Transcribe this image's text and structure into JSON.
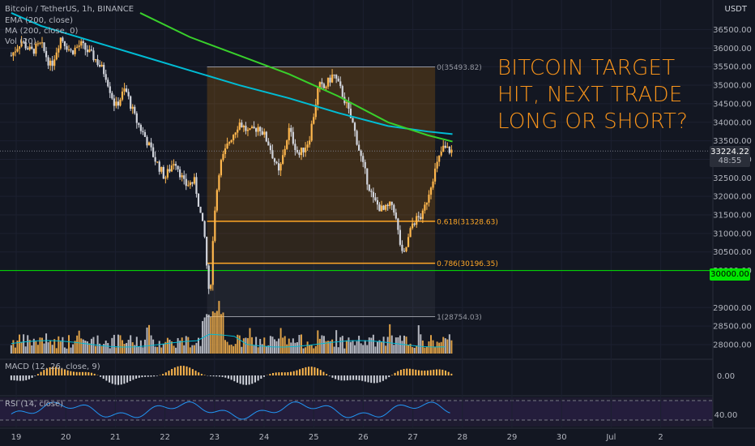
{
  "header": {
    "symbol": "Bitcoin / TetherUS, 1h, BINANCE",
    "ema_label": "EMA (200, close)",
    "ma_label": "MA (200, close, 0)",
    "vol_label": "Vol (20)",
    "currency": "USDT"
  },
  "headline": [
    "BITCOIN TARGET",
    "HIT, NEXT TRADE",
    "LONG OR SHORT?"
  ],
  "current_price": {
    "value": "33224.22",
    "countdown": "48:55"
  },
  "support_level": {
    "value": 30000,
    "label": "30000.00",
    "color": "#00e600"
  },
  "colors": {
    "up": "#ffb74d",
    "down": "#d1d4dc",
    "ema": "#00bcd4",
    "ma": "#39d02b",
    "fib": "#ffa726",
    "rsi": "#2196f3"
  },
  "chart_data": {
    "type": "candlestick",
    "y_axis": {
      "range": [
        27800,
        37000
      ],
      "ticks": [
        "36500.00",
        "36000.00",
        "35500.00",
        "35000.00",
        "34500.00",
        "34000.00",
        "33500.00",
        "33000.00",
        "32500.00",
        "32000.00",
        "31500.00",
        "31000.00",
        "30500.00",
        "30000.00",
        "29000.00",
        "28500.00",
        "28000.00"
      ],
      "tick_values": [
        36500,
        36000,
        35500,
        35000,
        34500,
        34000,
        33500,
        33000,
        32500,
        32000,
        31500,
        31000,
        30500,
        30000,
        29000,
        28500,
        28000
      ]
    },
    "x_axis": {
      "labels": [
        "19",
        "20",
        "21",
        "22",
        "23",
        "24",
        "25",
        "26",
        "27",
        "28",
        "29",
        "30",
        "Jul",
        "2"
      ]
    },
    "price_path": [
      [
        18.9,
        35800
      ],
      [
        19.1,
        36200
      ],
      [
        19.3,
        35900
      ],
      [
        19.5,
        36100
      ],
      [
        19.7,
        35500
      ],
      [
        19.9,
        36300
      ],
      [
        20.1,
        35900
      ],
      [
        20.3,
        36100
      ],
      [
        20.6,
        35700
      ],
      [
        20.8,
        35300
      ],
      [
        21.0,
        34400
      ],
      [
        21.2,
        34900
      ],
      [
        21.4,
        34100
      ],
      [
        21.6,
        33600
      ],
      [
        21.8,
        33000
      ],
      [
        22.0,
        32500
      ],
      [
        22.2,
        33000
      ],
      [
        22.4,
        32300
      ],
      [
        22.6,
        32400
      ],
      [
        22.8,
        30900
      ],
      [
        22.9,
        29100
      ],
      [
        23.0,
        31600
      ],
      [
        23.1,
        32800
      ],
      [
        23.3,
        33500
      ],
      [
        23.5,
        34000
      ],
      [
        23.7,
        33700
      ],
      [
        23.9,
        33900
      ],
      [
        24.1,
        33400
      ],
      [
        24.3,
        32600
      ],
      [
        24.5,
        33800
      ],
      [
        24.7,
        33100
      ],
      [
        24.9,
        33500
      ],
      [
        25.0,
        34200
      ],
      [
        25.1,
        35000
      ],
      [
        25.2,
        34900
      ],
      [
        25.4,
        35300
      ],
      [
        25.6,
        34700
      ],
      [
        25.8,
        33900
      ],
      [
        26.0,
        32800
      ],
      [
        26.2,
        31900
      ],
      [
        26.4,
        31600
      ],
      [
        26.6,
        31800
      ],
      [
        26.8,
        30300
      ],
      [
        26.9,
        30800
      ],
      [
        27.0,
        31300
      ],
      [
        27.2,
        31500
      ],
      [
        27.4,
        32500
      ],
      [
        27.6,
        33300
      ],
      [
        27.8,
        33224
      ]
    ],
    "ema200": [
      [
        18.9,
        36950
      ],
      [
        19.5,
        36600
      ],
      [
        20.5,
        36200
      ],
      [
        21.5,
        35800
      ],
      [
        22.5,
        35400
      ],
      [
        23.5,
        35000
      ],
      [
        24.5,
        34650
      ],
      [
        25.5,
        34250
      ],
      [
        26.5,
        33900
      ],
      [
        27.3,
        33750
      ],
      [
        27.8,
        33680
      ]
    ],
    "ma200": [
      [
        21.5,
        36950
      ],
      [
        22.5,
        36300
      ],
      [
        23.5,
        35800
      ],
      [
        24.5,
        35300
      ],
      [
        25.5,
        34700
      ],
      [
        26.5,
        34000
      ],
      [
        27.3,
        33650
      ],
      [
        27.8,
        33480
      ]
    ],
    "fib_box": {
      "x_start": 22.85,
      "x_end": 27.45,
      "levels": [
        {
          "ratio": "0",
          "price": 35493.82,
          "label": "0(35493.82)"
        },
        {
          "ratio": "0.618",
          "price": 31328.63,
          "label": "0.618(31328.63)"
        },
        {
          "ratio": "0.786",
          "price": 30196.35,
          "label": "0.786(30196.35)"
        },
        {
          "ratio": "1",
          "price": 28754.03,
          "label": "1(28754.03)"
        }
      ]
    },
    "macd": {
      "label": "MACD (12, 26, close, 9)",
      "tick": "0.00"
    },
    "rsi": {
      "label": "RSI (14, close)",
      "tick": "40.00",
      "upper": 70,
      "lower": 30
    }
  }
}
